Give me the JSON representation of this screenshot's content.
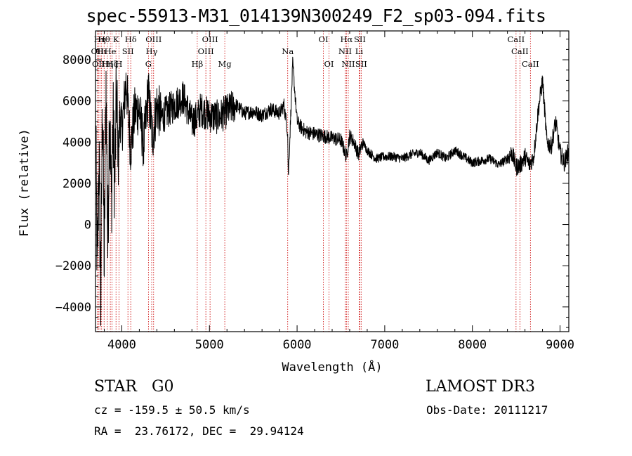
{
  "title": "spec-55913-M31_014139N300249_F2_sp03-094.fits",
  "info": {
    "object_class": "STAR",
    "subclass": "G0",
    "survey": "LAMOST DR3",
    "cz_label": "cz =",
    "cz_value": "-159.5",
    "cz_error": "50.5",
    "cz_unit": "km/s",
    "obs_date_label": "Obs-Date:",
    "obs_date": "20111217",
    "ra_label": "RA =",
    "ra": "23.76172",
    "dec_label": "DEC =",
    "dec": "29.94124"
  },
  "chart_data": {
    "type": "line",
    "title": "spec-55913-M31_014139N300249_F2_sp03-094.fits",
    "xlabel": "Wavelength (Å)",
    "ylabel": "Flux (relative)",
    "xlim": [
      3700,
      9100
    ],
    "ylim": [
      -5200,
      9400
    ],
    "xticks": [
      4000,
      5000,
      6000,
      7000,
      8000,
      9000
    ],
    "yticks": [
      -4000,
      -2000,
      0,
      2000,
      4000,
      6000,
      8000
    ],
    "line_color": "#000000",
    "marker_color": "#cc0000",
    "series": [
      {
        "name": "flux",
        "x": [
          3700,
          3720,
          3740,
          3760,
          3780,
          3800,
          3820,
          3840,
          3860,
          3880,
          3900,
          3920,
          3940,
          3960,
          3980,
          4000,
          4050,
          4100,
          4150,
          4200,
          4250,
          4300,
          4350,
          4400,
          4450,
          4500,
          4600,
          4700,
          4800,
          4860,
          4900,
          5000,
          5100,
          5200,
          5300,
          5400,
          5500,
          5600,
          5700,
          5800,
          5850,
          5892,
          5900,
          5950,
          6000,
          6050,
          6100,
          6200,
          6300,
          6400,
          6500,
          6563,
          6600,
          6650,
          6700,
          6750,
          6800,
          6900,
          7000,
          7100,
          7200,
          7300,
          7400,
          7500,
          7600,
          7700,
          7800,
          7900,
          8000,
          8100,
          8200,
          8300,
          8400,
          8450,
          8500,
          8550,
          8600,
          8650,
          8700,
          8750,
          8800,
          8850,
          8900,
          8950,
          9000,
          9050,
          9100
        ],
        "y": [
          5200,
          -2500,
          3500,
          -3800,
          6600,
          -2200,
          7000,
          -1200,
          6000,
          1000,
          5000,
          2000,
          6500,
          3000,
          5500,
          4500,
          7000,
          3700,
          5500,
          5600,
          3800,
          6500,
          4200,
          5800,
          5200,
          5400,
          5800,
          6200,
          5000,
          5200,
          5600,
          5300,
          5200,
          5500,
          5800,
          5400,
          5500,
          5300,
          5600,
          5400,
          5800,
          4500,
          2300,
          7800,
          5000,
          4700,
          4500,
          4400,
          4300,
          4200,
          4100,
          3300,
          4300,
          4000,
          3400,
          4000,
          3600,
          3200,
          3300,
          3300,
          3200,
          3400,
          3500,
          3100,
          3500,
          3200,
          3600,
          3300,
          3000,
          3100,
          3200,
          2900,
          3200,
          3500,
          2800,
          2900,
          3300,
          2900,
          3300,
          5500,
          7000,
          4000,
          3800,
          5000,
          3500,
          3000,
          3600
        ]
      }
    ],
    "lines": [
      {
        "wavelength": 3722,
        "label": "OII",
        "row": 2
      },
      {
        "wavelength": 3734,
        "label": "OII",
        "row": 3
      },
      {
        "wavelength": 3750,
        "label": "Hη",
        "row": 1
      },
      {
        "wavelength": 3770,
        "label": "Hι",
        "row": 2
      },
      {
        "wavelength": 3798,
        "label": "Hθ",
        "row": 1
      },
      {
        "wavelength": 3835,
        "label": "Hη",
        "row": 3
      },
      {
        "wavelength": 3869,
        "label": "He",
        "row": 2
      },
      {
        "wavelength": 3889,
        "label": "Hζ",
        "row": 3
      },
      {
        "wavelength": 3934,
        "label": "K",
        "row": 1
      },
      {
        "wavelength": 3968,
        "label": "H",
        "row": 3
      },
      {
        "wavelength": 4070,
        "label": "SII",
        "row": 2
      },
      {
        "wavelength": 4102,
        "label": "Hδ",
        "row": 1
      },
      {
        "wavelength": 4304,
        "label": "G",
        "row": 3
      },
      {
        "wavelength": 4341,
        "label": "Hγ",
        "row": 2
      },
      {
        "wavelength": 4363,
        "label": "OIII",
        "row": 1
      },
      {
        "wavelength": 4861,
        "label": "Hβ",
        "row": 3
      },
      {
        "wavelength": 4959,
        "label": "OIII",
        "row": 2
      },
      {
        "wavelength": 5007,
        "label": "OIII",
        "row": 1
      },
      {
        "wavelength": 5175,
        "label": "Mg",
        "row": 3
      },
      {
        "wavelength": 5893,
        "label": "Na",
        "row": 2
      },
      {
        "wavelength": 6300,
        "label": "OI",
        "row": 1
      },
      {
        "wavelength": 6364,
        "label": "OI",
        "row": 3
      },
      {
        "wavelength": 6548,
        "label": "NII",
        "row": 2
      },
      {
        "wavelength": 6563,
        "label": "Hα",
        "row": 1
      },
      {
        "wavelength": 6584,
        "label": "NII",
        "row": 3
      },
      {
        "wavelength": 6708,
        "label": "Li",
        "row": 2
      },
      {
        "wavelength": 6716,
        "label": "SII",
        "row": 1
      },
      {
        "wavelength": 6731,
        "label": "SII",
        "row": 3
      },
      {
        "wavelength": 8498,
        "label": "CaII",
        "row": 1
      },
      {
        "wavelength": 8542,
        "label": "CaII",
        "row": 2
      },
      {
        "wavelength": 8662,
        "label": "CaII",
        "row": 3
      }
    ]
  }
}
